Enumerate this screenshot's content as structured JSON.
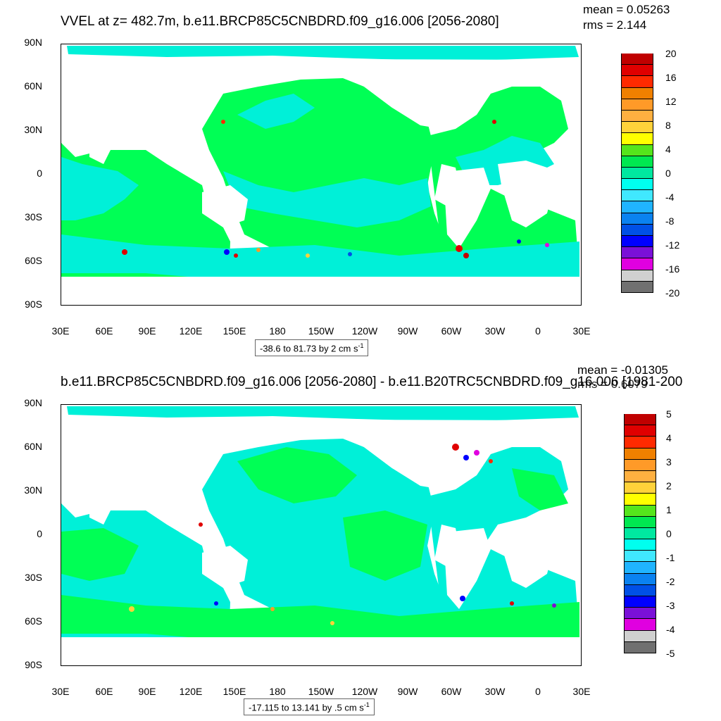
{
  "panels": [
    {
      "title": "VVEL at z= 482.7m, b.e11.BRCP85C5CNBDRD.f09_g16.006 [2056-2080]",
      "mean": "mean = 0.05263",
      "rms": "rms = 2.144",
      "range_text": "-38.6 to 81.73 by 2 cm s",
      "range_sup": "-1",
      "colorbar_labels": [
        "20",
        "16",
        "12",
        "8",
        "4",
        "0",
        "-4",
        "-8",
        "-12",
        "-16",
        "-20"
      ]
    },
    {
      "title": "b.e11.BRCP85C5CNBDRD.f09_g16.006 [2056-2080] - b.e11.B20TRC5CNBDRD.f09_g16.006 [1981-200",
      "mean": "mean = -0.01305",
      "rms": "rms = 0.6079",
      "range_text": "-17.115 to 13.141 by .5 cm s",
      "range_sup": "-1",
      "colorbar_labels": [
        "5",
        "4",
        "3",
        "2",
        "1",
        "0",
        "-1",
        "-2",
        "-3",
        "-4",
        "-5"
      ]
    }
  ],
  "lat_labels": [
    "90N",
    "60N",
    "30N",
    "0",
    "30S",
    "60S",
    "90S"
  ],
  "lon_labels": [
    "30E",
    "60E",
    "90E",
    "120E",
    "150E",
    "180",
    "150W",
    "120W",
    "90W",
    "60W",
    "30W",
    "0",
    "30E"
  ],
  "colorbar_colors": [
    "#c00000",
    "#e00000",
    "#ff2a00",
    "#f08000",
    "#ff9a28",
    "#ffb040",
    "#ffd23a",
    "#ffff00",
    "#55e51c",
    "#00e850",
    "#00e8a0",
    "#00ffee",
    "#40e8ff",
    "#20b4ff",
    "#0a82f0",
    "#0050e6",
    "#0000ff",
    "#7a10d8",
    "#e000e0",
    "#d0d0d0",
    "#707070"
  ],
  "colors": {
    "ocean": "#00f0d8",
    "ocean_green": "#00ff55",
    "land": "#ffffff"
  }
}
